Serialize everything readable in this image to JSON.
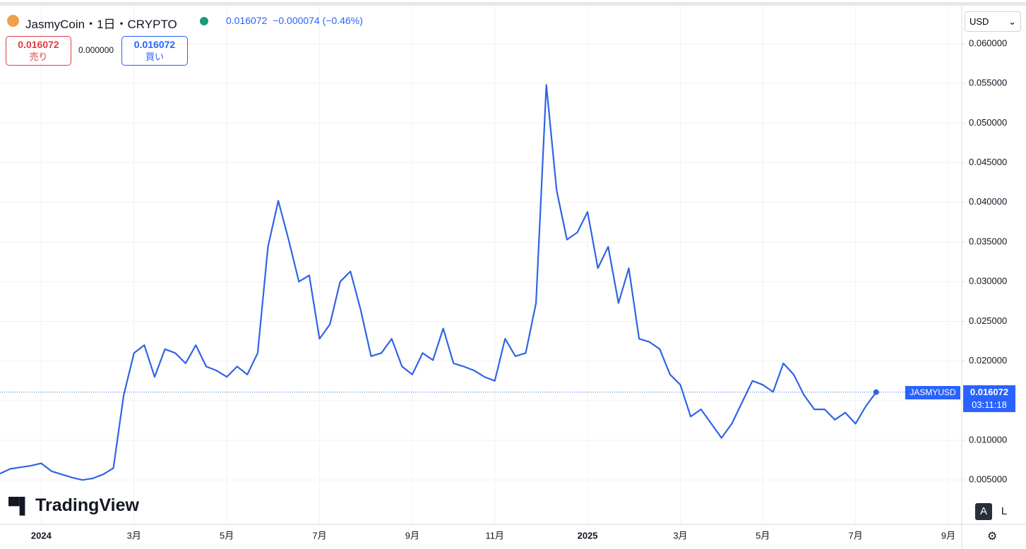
{
  "ui": {
    "symbol": "JasmyCoin・1日・CRYPTO",
    "change": "−0.000074",
    "change_pct": "(−0.46%)",
    "sell_label": "売り",
    "buy_label": "買い",
    "spread": "0.000000",
    "currency": "USD",
    "ticker": "JASMYUSD",
    "countdown": "03:11:18",
    "logo": "TradingView",
    "btn_auto": "A",
    "btn_log": "L"
  },
  "chart_data": {
    "type": "line",
    "color": "#2f64e6",
    "grid": true,
    "categories": [
      null,
      null,
      null,
      null,
      "2024",
      null,
      null,
      null,
      null,
      null,
      null,
      null,
      null,
      "3月",
      null,
      null,
      null,
      null,
      null,
      null,
      null,
      null,
      "5月",
      null,
      null,
      null,
      null,
      null,
      null,
      null,
      null,
      "7月",
      null,
      null,
      null,
      null,
      null,
      null,
      null,
      null,
      "9月",
      null,
      null,
      null,
      null,
      null,
      null,
      null,
      "11月",
      null,
      null,
      null,
      null,
      null,
      null,
      null,
      null,
      "2025",
      null,
      null,
      null,
      null,
      null,
      null,
      null,
      null,
      "3月",
      null,
      null,
      null,
      null,
      null,
      null,
      null,
      "5月",
      null,
      null,
      null,
      null,
      null,
      null,
      null,
      null,
      "7月",
      null,
      null,
      null,
      null,
      null,
      null,
      null,
      null,
      "9月"
    ],
    "values": [
      0.0058,
      0.0064,
      0.0066,
      0.0068,
      0.0071,
      0.0061,
      0.0057,
      0.0053,
      0.005,
      0.0052,
      0.0057,
      0.0065,
      0.0157,
      0.021,
      0.022,
      0.018,
      0.0215,
      0.021,
      0.0197,
      0.022,
      0.0193,
      0.0188,
      0.018,
      0.0193,
      0.0183,
      0.021,
      0.0344,
      0.0402,
      0.0353,
      0.03,
      0.0308,
      0.0228,
      0.0246,
      0.03,
      0.0313,
      0.0264,
      0.0206,
      0.021,
      0.0228,
      0.0193,
      0.0183,
      0.021,
      0.0201,
      0.0241,
      0.0197,
      0.0193,
      0.0188,
      0.018,
      0.0175,
      0.0228,
      0.0206,
      0.021,
      0.0273,
      0.0548,
      0.0415,
      0.0353,
      0.0362,
      0.0388,
      0.0317,
      0.0344,
      0.0273,
      0.0317,
      0.0228,
      0.0224,
      0.0215,
      0.0183,
      0.017,
      0.013,
      0.0139,
      0.0121,
      0.0103,
      0.0121,
      0.0148,
      0.0175,
      0.017,
      0.0161,
      0.0197,
      0.0183,
      0.0157,
      0.0139,
      0.0139,
      0.0126,
      0.0135,
      0.0121,
      0.0143,
      0.016072,
      null,
      null,
      null,
      null,
      null,
      null,
      null
    ],
    "ylim": [
      -0.0005,
      0.0648
    ],
    "yticks": [
      {
        "value": 0.005,
        "label": "0.005000"
      },
      {
        "value": 0.01,
        "label": "0.010000"
      },
      {
        "value": 0.015,
        "label": "0.015000"
      },
      {
        "value": 0.02,
        "label": "0.020000"
      },
      {
        "value": 0.025,
        "label": "0.025000"
      },
      {
        "value": 0.03,
        "label": "0.030000"
      },
      {
        "value": 0.035,
        "label": "0.035000"
      },
      {
        "value": 0.04,
        "label": "0.040000"
      },
      {
        "value": 0.045,
        "label": "0.045000"
      },
      {
        "value": 0.05,
        "label": "0.050000"
      },
      {
        "value": 0.055,
        "label": "0.055000"
      },
      {
        "value": 0.06,
        "label": "0.060000"
      }
    ]
  }
}
